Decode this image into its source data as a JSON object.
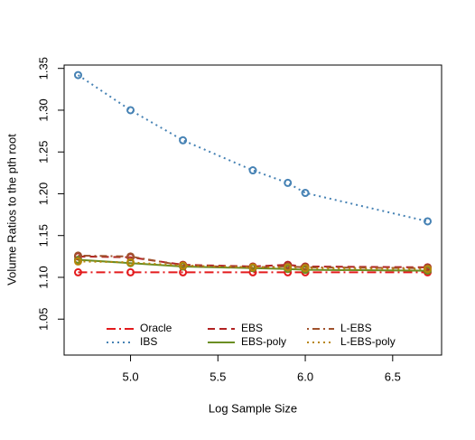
{
  "chart_data": {
    "type": "line",
    "xlabel": "Log Sample Size",
    "ylabel": "Volume Ratios to the pth root",
    "x": [
      4.7,
      5.0,
      5.3,
      5.7,
      5.9,
      6.0,
      6.7
    ],
    "xlim": [
      4.62,
      6.78
    ],
    "xticks": [
      {
        "value": 5,
        "label": "5.0"
      },
      5.5,
      {
        "value": 6,
        "label": "6.0"
      },
      6.5
    ],
    "ylim": [
      1.007,
      1.354
    ],
    "yticks": [
      1.05,
      {
        "value": 1.1,
        "label": "1.10"
      },
      1.15,
      {
        "value": 1.2,
        "label": "1.20"
      },
      1.25,
      {
        "value": 1.3,
        "label": "1.30"
      },
      1.35
    ],
    "markers": true,
    "legend_position": "bottom",
    "series": [
      {
        "name": "Oracle",
        "color": "#e31a1c",
        "linestyle": "dashdot",
        "values": [
          1.106,
          1.106,
          1.106,
          1.106,
          1.106,
          1.106,
          1.106
        ]
      },
      {
        "name": "IBS",
        "color": "#4682b4",
        "linestyle": "dotted",
        "values": [
          1.342,
          1.3,
          1.264,
          1.228,
          1.213,
          1.201,
          1.167
        ]
      },
      {
        "name": "EBS",
        "color": "#b22222",
        "linestyle": "dashed",
        "values": [
          1.125,
          1.124,
          1.115,
          1.113,
          1.115,
          1.113,
          1.112
        ]
      },
      {
        "name": "EBS-poly",
        "color": "#6b8e23",
        "linestyle": "solid",
        "values": [
          1.121,
          1.117,
          1.113,
          1.111,
          1.11,
          1.109,
          1.108
        ]
      },
      {
        "name": "L-EBS",
        "color": "#a0522d",
        "linestyle": "dotdash",
        "values": [
          1.126,
          1.125,
          1.114,
          1.112,
          1.113,
          1.112,
          1.111
        ]
      },
      {
        "name": "L-EBS-poly",
        "color": "#b8860b",
        "linestyle": "dotted",
        "values": [
          1.119,
          1.118,
          1.114,
          1.112,
          1.112,
          1.111,
          1.11
        ]
      }
    ]
  }
}
